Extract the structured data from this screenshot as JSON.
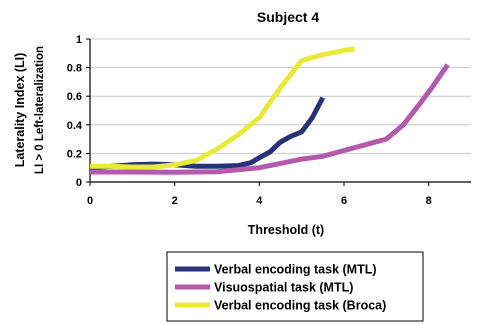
{
  "chart_data": {
    "type": "line",
    "title": "Subject 4",
    "xlabel": "Threshold (t)",
    "ylabel": "Laterality Index (LI)",
    "ylabel2": "LI > 0  Left-lateralization",
    "xlim": [
      0,
      9
    ],
    "ylim": [
      0,
      1
    ],
    "xticks": [
      "0",
      "2",
      "4",
      "6",
      "8"
    ],
    "yticks": [
      "0",
      "0.2",
      "0.4",
      "0.6",
      "0.8",
      "1"
    ],
    "grid": true,
    "legend_position": "bottom",
    "series": [
      {
        "name": "Verbal encoding task (MTL)",
        "color": "#283278",
        "x": [
          0,
          0.5,
          1.0,
          1.5,
          2.0,
          2.5,
          3.0,
          3.5,
          3.8,
          4.0,
          4.25,
          4.5,
          4.75,
          5.0,
          5.25,
          5.5
        ],
        "y": [
          0.1,
          0.11,
          0.12,
          0.125,
          0.12,
          0.11,
          0.11,
          0.115,
          0.135,
          0.17,
          0.21,
          0.28,
          0.32,
          0.35,
          0.45,
          0.59
        ]
      },
      {
        "name": "Visuospatial task (MTL)",
        "color": "#b45aad",
        "x": [
          0,
          1.0,
          2.0,
          3.0,
          4.0,
          4.5,
          5.0,
          5.5,
          6.0,
          6.5,
          7.0,
          7.4,
          7.8,
          8.1,
          8.45
        ],
        "y": [
          0.07,
          0.07,
          0.068,
          0.072,
          0.1,
          0.13,
          0.16,
          0.18,
          0.22,
          0.26,
          0.3,
          0.4,
          0.55,
          0.67,
          0.82
        ]
      },
      {
        "name": "Verbal encoding task (Broca)",
        "color": "#e8ea3a",
        "x": [
          0,
          0.5,
          1.0,
          1.5,
          2.0,
          2.5,
          3.0,
          3.5,
          4.0,
          4.5,
          5.0,
          5.5,
          6.0,
          6.25
        ],
        "y": [
          0.11,
          0.11,
          0.105,
          0.105,
          0.12,
          0.15,
          0.23,
          0.33,
          0.45,
          0.66,
          0.85,
          0.89,
          0.92,
          0.93
        ]
      }
    ]
  }
}
